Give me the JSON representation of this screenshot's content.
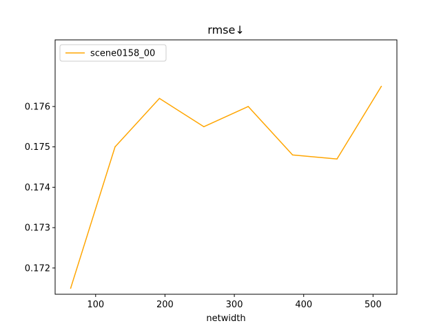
{
  "chart_data": {
    "type": "line",
    "title": "rmse↓",
    "xlabel": "netwidth",
    "ylabel": "",
    "xlim": [
      41.6,
      534.4
    ],
    "ylim": [
      0.17135,
      0.17765
    ],
    "xticks": [
      100,
      200,
      300,
      400,
      500
    ],
    "xtick_labels": [
      "100",
      "200",
      "300",
      "400",
      "500"
    ],
    "yticks": [
      0.172,
      0.173,
      0.174,
      0.175,
      0.176
    ],
    "ytick_labels": [
      "0.172",
      "0.173",
      "0.174",
      "0.175",
      "0.176"
    ],
    "grid": false,
    "legend_position": "top-left",
    "series": [
      {
        "name": "scene0158_00",
        "color": "#ffa500",
        "x": [
          64,
          128,
          192,
          256,
          320,
          384,
          448,
          512
        ],
        "y": [
          0.1715,
          0.175,
          0.1762,
          0.1755,
          0.176,
          0.1748,
          0.1747,
          0.1765
        ]
      }
    ]
  }
}
